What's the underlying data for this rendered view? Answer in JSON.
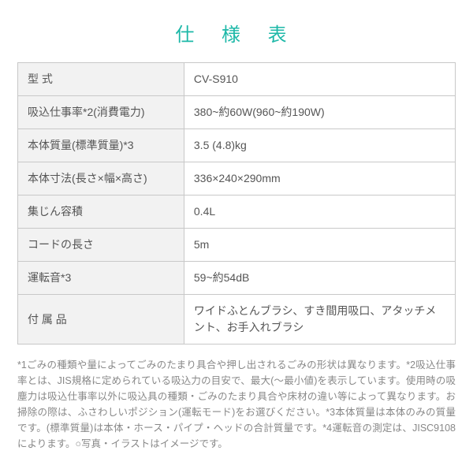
{
  "title": "仕 様 表",
  "table": {
    "rows": [
      {
        "label": "型 式",
        "value": "CV-S910"
      },
      {
        "label": "吸込仕事率*2(消費電力)",
        "value": "380~約60W(960~約190W)"
      },
      {
        "label": "本体質量(標準質量)*3",
        "value": "3.5 (4.8)kg"
      },
      {
        "label": "本体寸法(長さ×幅×高さ)",
        "value": "336×240×290mm"
      },
      {
        "label": "集じん容積",
        "value": "0.4L"
      },
      {
        "label": "コードの長さ",
        "value": "5m"
      },
      {
        "label": "運転音*3",
        "value": "59~約54dB"
      },
      {
        "label": "付 属 品",
        "value": "ワイドふとんブラシ、すき間用吸口、アタッチメント、お手入れブラシ"
      }
    ]
  },
  "footnote": "*1ごみの種類や量によってごみのたまり具合や押し出されるごみの形状は異なります。*2吸込仕事率とは、JIS規格に定められている吸込力の目安で、最大(〜最小値)を表示しています。使用時の吸塵力は吸込仕事率以外に吸込具の種類・ごみのたまり具合や床材の違い等によって異なります。お掃除の際は、ふさわしいポジション(運転モード)をお選びください。*3本体質量は本体のみの質量です。(標準質量)は本体・ホース・パイプ・ヘッドの合計質量です。*4運転音の測定は、JISC9108によります。○写真・イラストはイメージです。",
  "colors": {
    "title_color": "#1db8a8",
    "border_color": "#c8c8c8",
    "label_bg": "#f2f2f2",
    "text_color": "#555555",
    "footnote_color": "#888888"
  }
}
